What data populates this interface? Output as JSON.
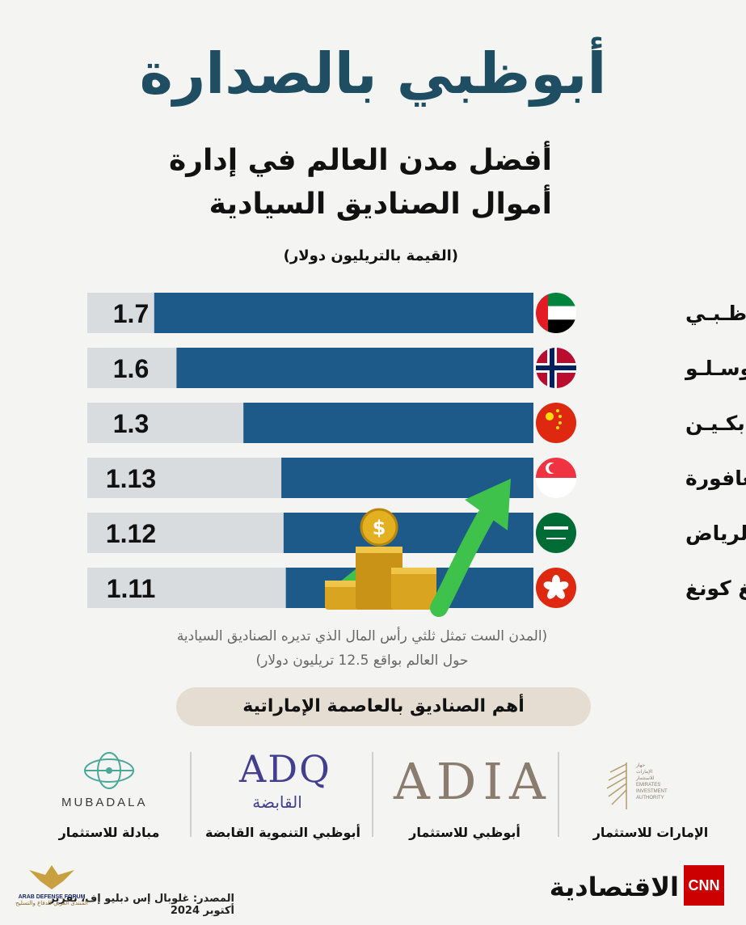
{
  "title": "أبوظبي بالصدارة",
  "subtitle_line1": "أفضل مدن العالم في إدارة",
  "subtitle_line2": "أموال الصناديق السيادية",
  "unit_note": "(القيمة بالتريليون دولار)",
  "chart_data": {
    "type": "bar",
    "orientation": "horizontal",
    "categories": [
      "أبـوظـبـي",
      "أوسـلـو",
      "بكـيـن",
      "سنغافورة",
      "الرياض",
      "هونغ كونغ"
    ],
    "values": [
      1.7,
      1.6,
      1.3,
      1.13,
      1.12,
      1.11
    ],
    "value_labels": [
      "1.7",
      "1.6",
      "1.3",
      "1.13",
      "1.12",
      "1.11"
    ],
    "flags": [
      "uae-flag-icon",
      "norway-flag-icon",
      "china-flag-icon",
      "singapore-flag-icon",
      "saudi-flag-icon",
      "hong-kong-flag-icon"
    ],
    "bar_color": "#1d5a89",
    "track_color": "#d9dcdf",
    "xlim": [
      0,
      2.0
    ]
  },
  "note_line1": "(المدن الست تمثل ثلثي رأس المال الذي تديره الصناديق السيادية",
  "note_line2": "حول العالم بواقع 12.5 تريليون دولار)",
  "funds_heading": "أهم الصناديق بالعاصمة الإماراتية",
  "funds": [
    {
      "caption": "الإمارات للاستثمار",
      "logo_lines": [
        "جهاز",
        "الإمارات",
        "للاستثمار",
        "EMIRATES",
        "INVESTMENT",
        "AUTHORITY"
      ]
    },
    {
      "caption": "أبوظبي للاستثمار",
      "logo_text": "ADIA"
    },
    {
      "caption": "أبوظبي التنموية القابضة",
      "logo_text": "ADQ",
      "logo_text_ar": "القابضة"
    },
    {
      "caption": "مبادلة للاستثمار",
      "logo_text": "MUBADALA"
    }
  ],
  "source": "المصدر: غلوبال إس دبليو إف، تقرير أكتوبر 2024",
  "brand": {
    "cnn": "CNN",
    "name": "الاقتصادية"
  },
  "watermark": {
    "line1": "ARAB DEFENSE FORUM",
    "line2": "المنتدى العربي للدفاع والتسليح"
  },
  "colors": {
    "title": "#1f4e63",
    "bar": "#1d5a89",
    "arrow": "#3fc24b",
    "coin": "#d9a520",
    "cnn_red": "#cc0000"
  }
}
